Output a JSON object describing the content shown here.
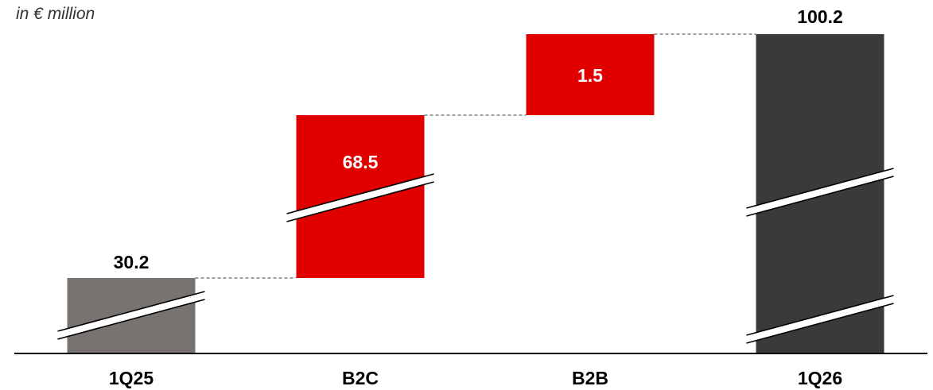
{
  "unit_note": "in € million",
  "colors": {
    "start_bar": "#787370",
    "increase_bar": "#e00000",
    "end_bar": "#3a3a3a",
    "connector": "#666666",
    "axis": "#000000"
  },
  "chart_data": {
    "type": "bar",
    "subtype": "waterfall",
    "categories": [
      "1Q25",
      "B2C",
      "B2B",
      "1Q26"
    ],
    "values": [
      30.2,
      68.5,
      1.5,
      100.2
    ],
    "bar_roles": [
      "total",
      "increase",
      "increase",
      "total"
    ],
    "value_labels": [
      "30.2",
      "68.5",
      "1.5",
      "100.2"
    ],
    "value_label_colors": [
      "#000000",
      "#ffffff",
      "#ffffff",
      "#000000"
    ],
    "axis_breaks": "broken value axis (bars shown with break marks, not to scale)",
    "title": "",
    "xlabel": "",
    "ylabel": "in € million",
    "grid": false,
    "legend": "none"
  }
}
